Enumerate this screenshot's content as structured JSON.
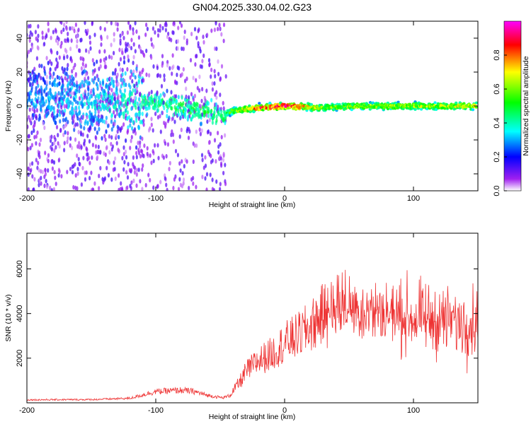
{
  "title": "GN04.2025.330.04.02.G23",
  "chart_data": [
    {
      "type": "heatmap",
      "xlabel": "Height of straight line (km)",
      "ylabel": "Frequency (Hz)",
      "xlim": [
        -200,
        150
      ],
      "ylim": [
        -50,
        50
      ],
      "x_ticks": [
        -200,
        -100,
        0,
        100
      ],
      "y_ticks": [
        -40,
        -20,
        0,
        20,
        40
      ],
      "colorbar": {
        "label": "Normalized spectral amplitude",
        "range": [
          0,
          1
        ],
        "ticks": [
          0.0,
          0.2,
          0.4,
          0.6,
          0.8
        ],
        "tick_labels": [
          "0.0",
          "0.2",
          "0.4",
          "0.6",
          "0.8"
        ],
        "colormap": [
          "#ffffff",
          "#a020f0",
          "#0000ff",
          "#00ffff",
          "#00ff00",
          "#ffff00",
          "#ff0000",
          "#ff00ff"
        ]
      },
      "ridge": {
        "description_points_x": [
          -200,
          -150,
          -100,
          -60,
          -50,
          -40,
          -20,
          0,
          30,
          60,
          100,
          150
        ],
        "center_freq": [
          4,
          3,
          2,
          -3,
          -6,
          -3,
          -1,
          0,
          -1,
          0,
          0,
          0
        ],
        "peak_amplitude": [
          0.3,
          0.35,
          0.45,
          0.5,
          0.45,
          0.6,
          0.85,
          0.95,
          0.6,
          0.65,
          0.65,
          0.7
        ]
      }
    },
    {
      "type": "line",
      "xlabel": "Height of straight line (km)",
      "ylabel": "SNR (10 * v/v)",
      "xlim": [
        -200,
        150
      ],
      "ylim": [
        0,
        7600
      ],
      "x_ticks": [
        -200,
        -100,
        0,
        100
      ],
      "y_ticks": [
        2000,
        4000,
        6000
      ],
      "series": [
        {
          "name": "SNR",
          "color": "#ee3333",
          "x": [
            -200,
            -150,
            -120,
            -100,
            -80,
            -70,
            -60,
            -48,
            -42,
            -38,
            -35,
            -30,
            -20,
            -10,
            0,
            10,
            20,
            28,
            33,
            36,
            40,
            50,
            60,
            80,
            100,
            120,
            140,
            150
          ],
          "y": [
            120,
            130,
            180,
            450,
            500,
            450,
            300,
            200,
            300,
            700,
            900,
            1400,
            1900,
            2200,
            2700,
            3000,
            3400,
            3900,
            4100,
            4300,
            4400,
            4300,
            4200,
            4000,
            3800,
            3700,
            3600,
            3700
          ]
        }
      ]
    }
  ]
}
